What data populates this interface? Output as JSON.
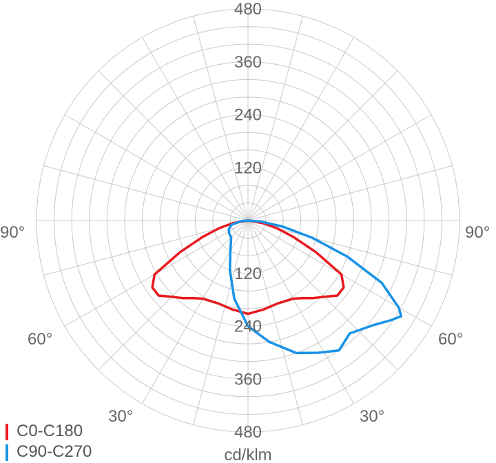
{
  "chart_data": {
    "type": "polar",
    "unit_label": "cd/klm",
    "radial_ticks": [
      120,
      240,
      360,
      480
    ],
    "rmax": 480,
    "angle_labels": {
      "left": "90°",
      "right": "90°",
      "lower_left_60": "60°",
      "lower_right_60": "60°",
      "lower_left_30": "30°",
      "lower_right_30": "30°"
    },
    "series": [
      {
        "name": "C0-C180",
        "color": "#e8191f",
        "points": [
          [
            -90,
            0
          ],
          [
            -80,
            35
          ],
          [
            -75,
            68
          ],
          [
            -70,
            110
          ],
          [
            -65,
            170
          ],
          [
            -60,
            245
          ],
          [
            -55,
            265
          ],
          [
            -50,
            265
          ],
          [
            -45,
            245
          ],
          [
            -40,
            230
          ],
          [
            -35,
            215
          ],
          [
            -30,
            205
          ],
          [
            -20,
            200
          ],
          [
            -10,
            205
          ],
          [
            0,
            212
          ],
          [
            10,
            205
          ],
          [
            20,
            200
          ],
          [
            30,
            205
          ],
          [
            35,
            215
          ],
          [
            40,
            230
          ],
          [
            45,
            245
          ],
          [
            50,
            265
          ],
          [
            55,
            265
          ],
          [
            60,
            245
          ],
          [
            65,
            170
          ],
          [
            70,
            110
          ],
          [
            75,
            68
          ],
          [
            80,
            35
          ],
          [
            90,
            0
          ]
        ]
      },
      {
        "name": "C90-C270",
        "color": "#1793e6",
        "points": [
          [
            -90,
            0
          ],
          [
            -85,
            15
          ],
          [
            -75,
            40
          ],
          [
            -65,
            48
          ],
          [
            -55,
            52
          ],
          [
            -45,
            54
          ],
          [
            -40,
            60
          ],
          [
            -30,
            80
          ],
          [
            -20,
            120
          ],
          [
            -10,
            180
          ],
          [
            0,
            240
          ],
          [
            10,
            280
          ],
          [
            20,
            320
          ],
          [
            28,
            340
          ],
          [
            35,
            360
          ],
          [
            42,
            345
          ],
          [
            50,
            370
          ],
          [
            55,
            395
          ],
          [
            58,
            410
          ],
          [
            60,
            395
          ],
          [
            65,
            335
          ],
          [
            70,
            240
          ],
          [
            75,
            150
          ],
          [
            80,
            80
          ],
          [
            85,
            30
          ],
          [
            90,
            0
          ]
        ]
      }
    ]
  }
}
